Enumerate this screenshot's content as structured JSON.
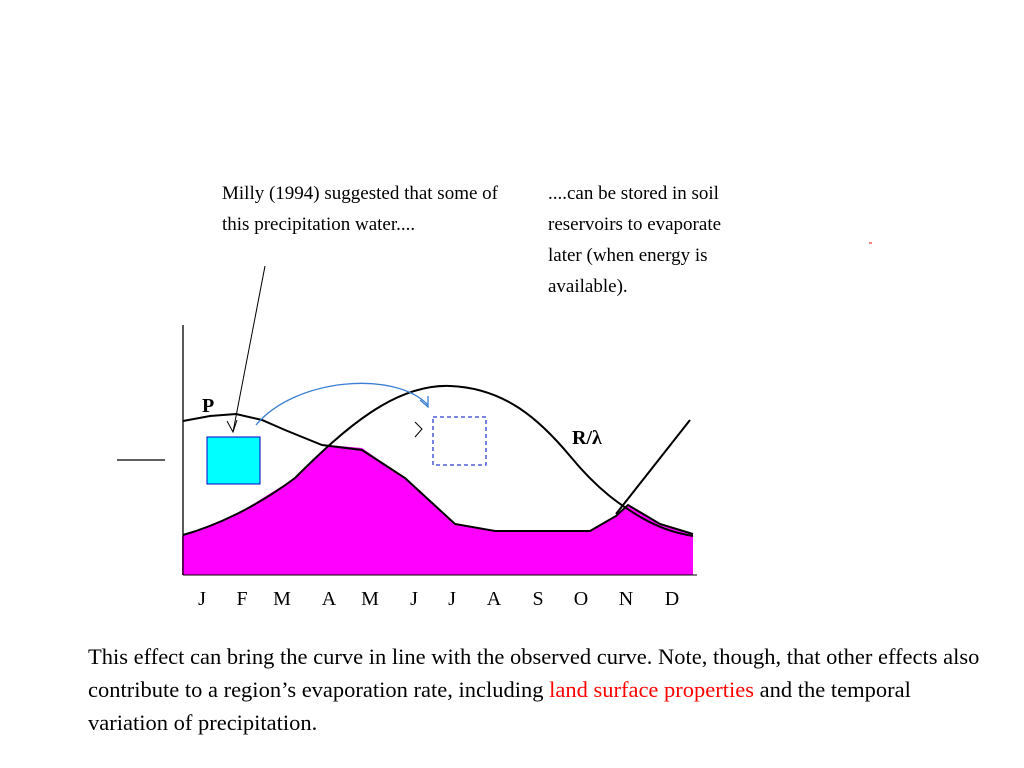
{
  "annotations": {
    "milly_text": "Milly (1994) suggested that some of this precipitation water....",
    "storage_text": "....can be stored in soil reservoirs to evaporate later (when energy is available)."
  },
  "labels": {
    "precip": "P",
    "radiation": "R/λ"
  },
  "months": [
    "J",
    "F",
    "M",
    "A",
    "M",
    "J",
    "J",
    "A",
    "S",
    "O",
    "N",
    "D"
  ],
  "caption": {
    "part1": "This effect can bring the curve in line with the observed curve.  Note, though, that other effects also contribute to a region’s evaporation rate, including ",
    "highlight": "land surface properties",
    "part2": " and the temporal variation of precipitation."
  },
  "colors": {
    "evaporation_fill": "#ff00ff",
    "water_box": "#00ffff",
    "transfer_arrow": "#3a7fd4",
    "stored_box": "#2a3fd0",
    "highlight_text": "#ff0000"
  }
}
